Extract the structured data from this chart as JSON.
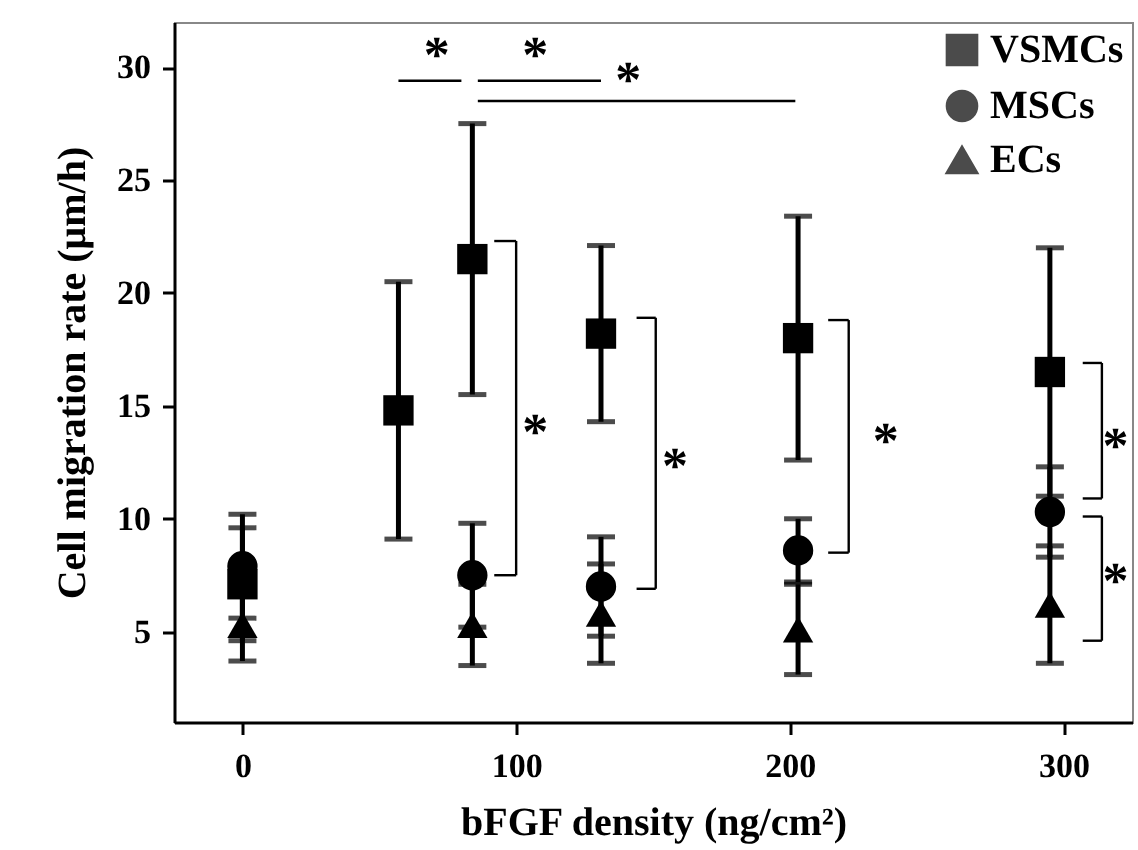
{
  "chart_data": {
    "type": "scatter",
    "xlabel": "bFGF density (ng/cm²)",
    "ylabel": "Cell migration rate (μm/h)",
    "xlim": [
      -25,
      325
    ],
    "ylim": [
      1,
      32
    ],
    "xticks": [
      0,
      100,
      200,
      300
    ],
    "yticks": [
      5,
      10,
      15,
      20,
      25,
      30
    ],
    "grid": false,
    "legend": "top right",
    "annotations": [
      "*",
      "*",
      "*",
      "*",
      "*",
      "*",
      "*",
      "*"
    ],
    "series": [
      {
        "name": "VSMCs",
        "color": "#000000",
        "marker": "square",
        "x": [
          0,
          57,
          84,
          131,
          203,
          295
        ],
        "values": [
          7.1,
          14.8,
          21.5,
          18.2,
          18.0,
          16.5
        ],
        "errors": [
          2.5,
          5.7,
          6.0,
          3.9,
          5.4,
          5.5
        ]
      },
      {
        "name": "MSCs",
        "color": "#000000",
        "marker": "circle",
        "x": [
          0,
          84,
          131,
          203,
          295
        ],
        "values": [
          7.9,
          7.5,
          7.0,
          8.6,
          10.3
        ],
        "errors": [
          2.3,
          2.3,
          2.2,
          1.4,
          2.0
        ]
      },
      {
        "name": "ECs",
        "color": "#000000",
        "marker": "triangle",
        "x": [
          0,
          84,
          131,
          203,
          295
        ],
        "values": [
          5.3,
          5.3,
          5.8,
          5.1,
          6.2
        ],
        "errors": [
          1.6,
          1.8,
          2.2,
          2.0,
          2.6
        ]
      }
    ]
  }
}
